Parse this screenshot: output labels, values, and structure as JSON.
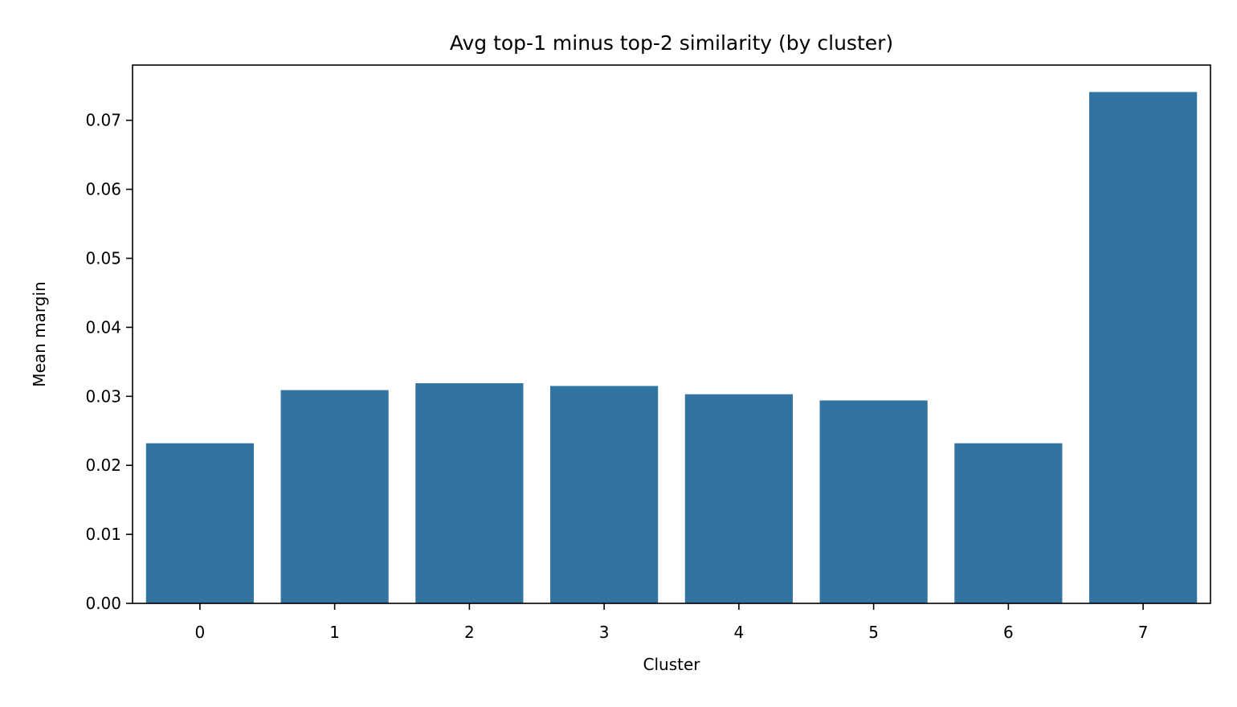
{
  "chart_data": {
    "type": "bar",
    "title": "Avg top-1 minus top-2 similarity (by cluster)",
    "xlabel": "Cluster",
    "ylabel": "Mean margin",
    "categories": [
      "0",
      "1",
      "2",
      "3",
      "4",
      "5",
      "6",
      "7"
    ],
    "values": [
      0.0232,
      0.0309,
      0.0319,
      0.0315,
      0.0303,
      0.0294,
      0.0232,
      0.0741
    ],
    "yticks": [
      "0.00",
      "0.01",
      "0.02",
      "0.03",
      "0.04",
      "0.05",
      "0.06",
      "0.07"
    ],
    "ylim": [
      0,
      0.078
    ],
    "grid": false,
    "bar_color": "#3274a1"
  }
}
